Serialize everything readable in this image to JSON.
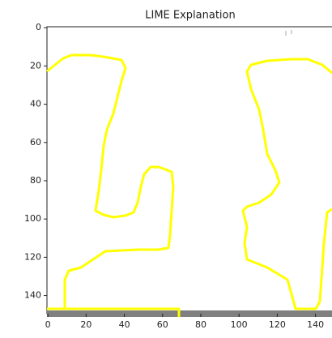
{
  "chart_data": {
    "type": "image",
    "title": "LIME Explanation",
    "xlim": [
      -0.5,
      149.5
    ],
    "ylim": [
      149.5,
      -0.5
    ],
    "xticks": [
      0,
      20,
      40,
      60,
      80,
      100,
      120,
      140
    ],
    "yticks": [
      0,
      20,
      40,
      60,
      80,
      100,
      120,
      140
    ]
  }
}
